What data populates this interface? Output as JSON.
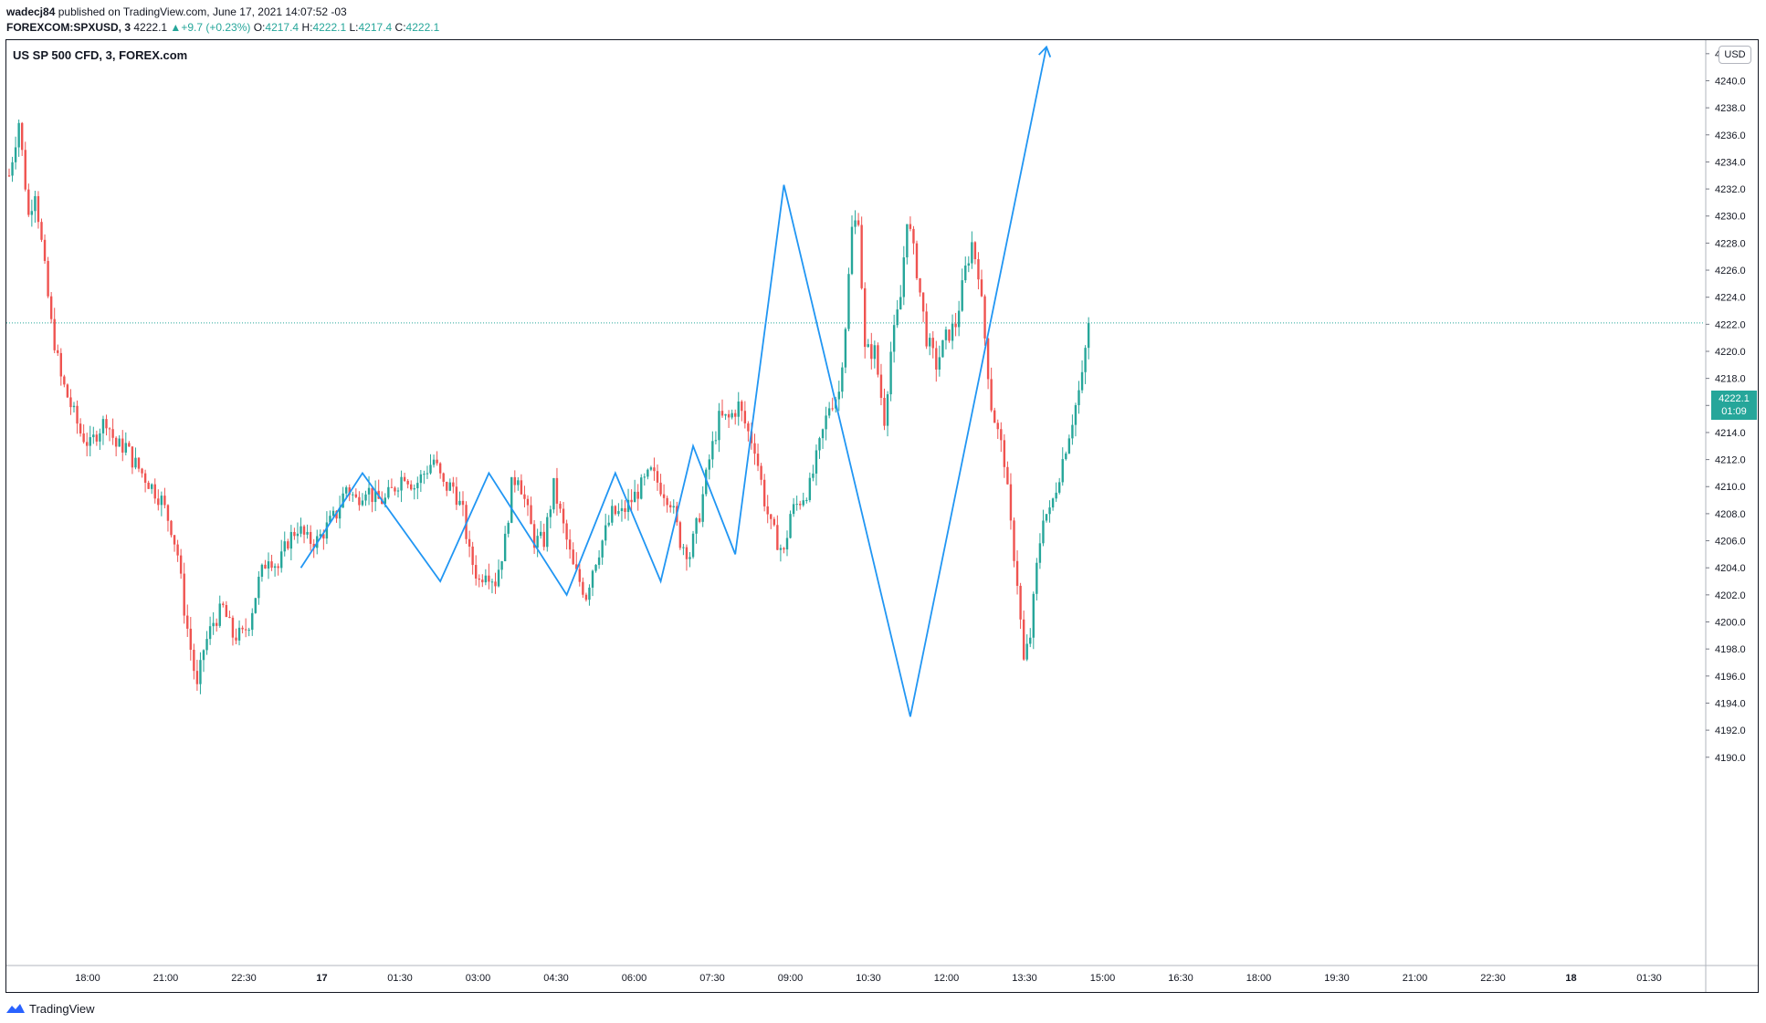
{
  "header": {
    "author": "wadecj84",
    "published": "published on TradingView.com, June 17, 2021 14:07:52 -03",
    "symbol": "FOREXCOM:SPXUSD, 3",
    "last": "4222.1",
    "change": "+9.7 (+0.23%)",
    "o_label": "O:",
    "o_value": "4217.4",
    "h_label": "H:",
    "h_value": "4222.1",
    "l_label": "L:",
    "l_value": "4217.4",
    "c_label": "C:",
    "c_value": "4222.1"
  },
  "legend_title": "US SP 500 CFD, 3, FOREX.com",
  "currency": "USD",
  "price_tag": {
    "price": "4222.1",
    "countdown": "01:09"
  },
  "footer_brand": "TradingView",
  "colors": {
    "up": "#26a69a",
    "down": "#ef5350",
    "drawing": "#2196f3",
    "priceline": "#26a69a"
  },
  "chart_data": {
    "type": "candlestick",
    "title": "US SP 500 CFD, 3, FOREX.com",
    "ylim": [
      4188.5,
      4243.0
    ],
    "y_ticks": [
      "4190.0",
      "4192.0",
      "4194.0",
      "4196.0",
      "4198.0",
      "4200.0",
      "4202.0",
      "4204.0",
      "4206.0",
      "4208.0",
      "4210.0",
      "4212.0",
      "4214.0",
      "4216.0",
      "4218.0",
      "4220.0",
      "4222.0",
      "4224.0",
      "4226.0",
      "4228.0",
      "4230.0",
      "4232.0",
      "4234.0",
      "4236.0",
      "4238.0",
      "4240.0",
      "4242.0"
    ],
    "x_ticks": [
      "18:00",
      "21:00",
      "22:30",
      "17",
      "01:30",
      "03:00",
      "04:30",
      "06:00",
      "07:30",
      "09:00",
      "10:30",
      "12:00",
      "13:30",
      "15:00",
      "16:30",
      "18:00",
      "19:30",
      "21:00",
      "22:30",
      "18",
      "01:30"
    ],
    "current_price": 4222.1,
    "close_path": [
      [
        0,
        4233
      ],
      [
        3,
        4237
      ],
      [
        6,
        4230
      ],
      [
        8,
        4232
      ],
      [
        11,
        4226
      ],
      [
        13,
        4222
      ],
      [
        16,
        4218
      ],
      [
        19,
        4216
      ],
      [
        22,
        4214
      ],
      [
        25,
        4213
      ],
      [
        27,
        4214
      ],
      [
        30,
        4215
      ],
      [
        33,
        4213
      ],
      [
        36,
        4213
      ],
      [
        38,
        4212
      ],
      [
        41,
        4211
      ],
      [
        44,
        4210
      ],
      [
        47,
        4209
      ],
      [
        50,
        4207
      ],
      [
        52,
        4205
      ],
      [
        54,
        4201
      ],
      [
        56,
        4198
      ],
      [
        58,
        4195
      ],
      [
        60,
        4198
      ],
      [
        63,
        4200
      ],
      [
        66,
        4201
      ],
      [
        69,
        4199
      ],
      [
        72,
        4199
      ],
      [
        74,
        4200
      ],
      [
        77,
        4203
      ],
      [
        80,
        4205
      ],
      [
        83,
        4204
      ],
      [
        86,
        4206
      ],
      [
        89,
        4207
      ],
      [
        92,
        4206
      ],
      [
        95,
        4206
      ],
      [
        98,
        4207
      ],
      [
        101,
        4208
      ],
      [
        104,
        4210
      ],
      [
        107,
        4209
      ],
      [
        110,
        4210
      ],
      [
        113,
        4209
      ],
      [
        116,
        4209
      ],
      [
        119,
        4210
      ],
      [
        122,
        4211
      ],
      [
        125,
        4210
      ],
      [
        128,
        4211
      ],
      [
        131,
        4212
      ],
      [
        134,
        4210
      ],
      [
        137,
        4210
      ],
      [
        140,
        4208
      ],
      [
        142,
        4205
      ],
      [
        145,
        4203
      ],
      [
        147,
        4204
      ],
      [
        150,
        4203
      ],
      [
        153,
        4206
      ],
      [
        155,
        4210
      ],
      [
        157,
        4211
      ],
      [
        160,
        4208
      ],
      [
        162,
        4206
      ],
      [
        165,
        4206
      ],
      [
        168,
        4210
      ],
      [
        170,
        4208
      ],
      [
        172,
        4206
      ],
      [
        174,
        4204
      ],
      [
        176,
        4203
      ],
      [
        178,
        4202
      ],
      [
        180,
        4204
      ],
      [
        183,
        4206
      ],
      [
        186,
        4208
      ],
      [
        189,
        4208
      ],
      [
        192,
        4209
      ],
      [
        195,
        4210
      ],
      [
        198,
        4211
      ],
      [
        201,
        4210
      ],
      [
        204,
        4209
      ],
      [
        207,
        4206
      ],
      [
        210,
        4205
      ],
      [
        213,
        4208
      ],
      [
        216,
        4212
      ],
      [
        219,
        4215
      ],
      [
        222,
        4215
      ],
      [
        225,
        4216
      ],
      [
        228,
        4214
      ],
      [
        230,
        4213
      ],
      [
        233,
        4209
      ],
      [
        235,
        4207
      ],
      [
        237,
        4206
      ],
      [
        239,
        4205
      ],
      [
        241,
        4208
      ],
      [
        244,
        4209
      ],
      [
        247,
        4210
      ],
      [
        250,
        4213
      ],
      [
        253,
        4216
      ],
      [
        256,
        4217
      ],
      [
        258,
        4222
      ],
      [
        260,
        4229
      ],
      [
        262,
        4230
      ],
      [
        264,
        4220
      ],
      [
        267,
        4220
      ],
      [
        270,
        4215
      ],
      [
        272,
        4220
      ],
      [
        275,
        4224
      ],
      [
        277,
        4230
      ],
      [
        280,
        4226
      ],
      [
        283,
        4221
      ],
      [
        286,
        4219
      ],
      [
        289,
        4221
      ],
      [
        292,
        4222
      ],
      [
        295,
        4226
      ],
      [
        297,
        4228
      ],
      [
        299,
        4226
      ],
      [
        301,
        4221
      ],
      [
        303,
        4216
      ],
      [
        305,
        4214
      ],
      [
        307,
        4212
      ],
      [
        309,
        4207
      ],
      [
        311,
        4203
      ],
      [
        313,
        4197
      ],
      [
        315,
        4199
      ],
      [
        317,
        4204
      ],
      [
        319,
        4208
      ],
      [
        321,
        4208
      ],
      [
        323,
        4210
      ],
      [
        325,
        4212
      ],
      [
        327,
        4214
      ],
      [
        329,
        4216
      ],
      [
        331,
        4218
      ],
      [
        333,
        4222.1
      ]
    ],
    "n_bars": 334,
    "bars_hidden_by_time": "x values are bar indices (3-minute bars)",
    "drawings": [
      {
        "type": "zigzag",
        "points": [
          [
            90,
            4204
          ],
          [
            109,
            4211
          ],
          [
            133,
            4203
          ],
          [
            148,
            4211
          ],
          [
            172,
            4202
          ],
          [
            187,
            4211
          ],
          [
            201,
            4203
          ],
          [
            211,
            4213
          ],
          [
            224,
            4205
          ],
          [
            239,
            4232.3
          ],
          [
            278,
            4193
          ],
          [
            320,
            4242.5
          ]
        ],
        "arrow_end": true
      }
    ]
  }
}
